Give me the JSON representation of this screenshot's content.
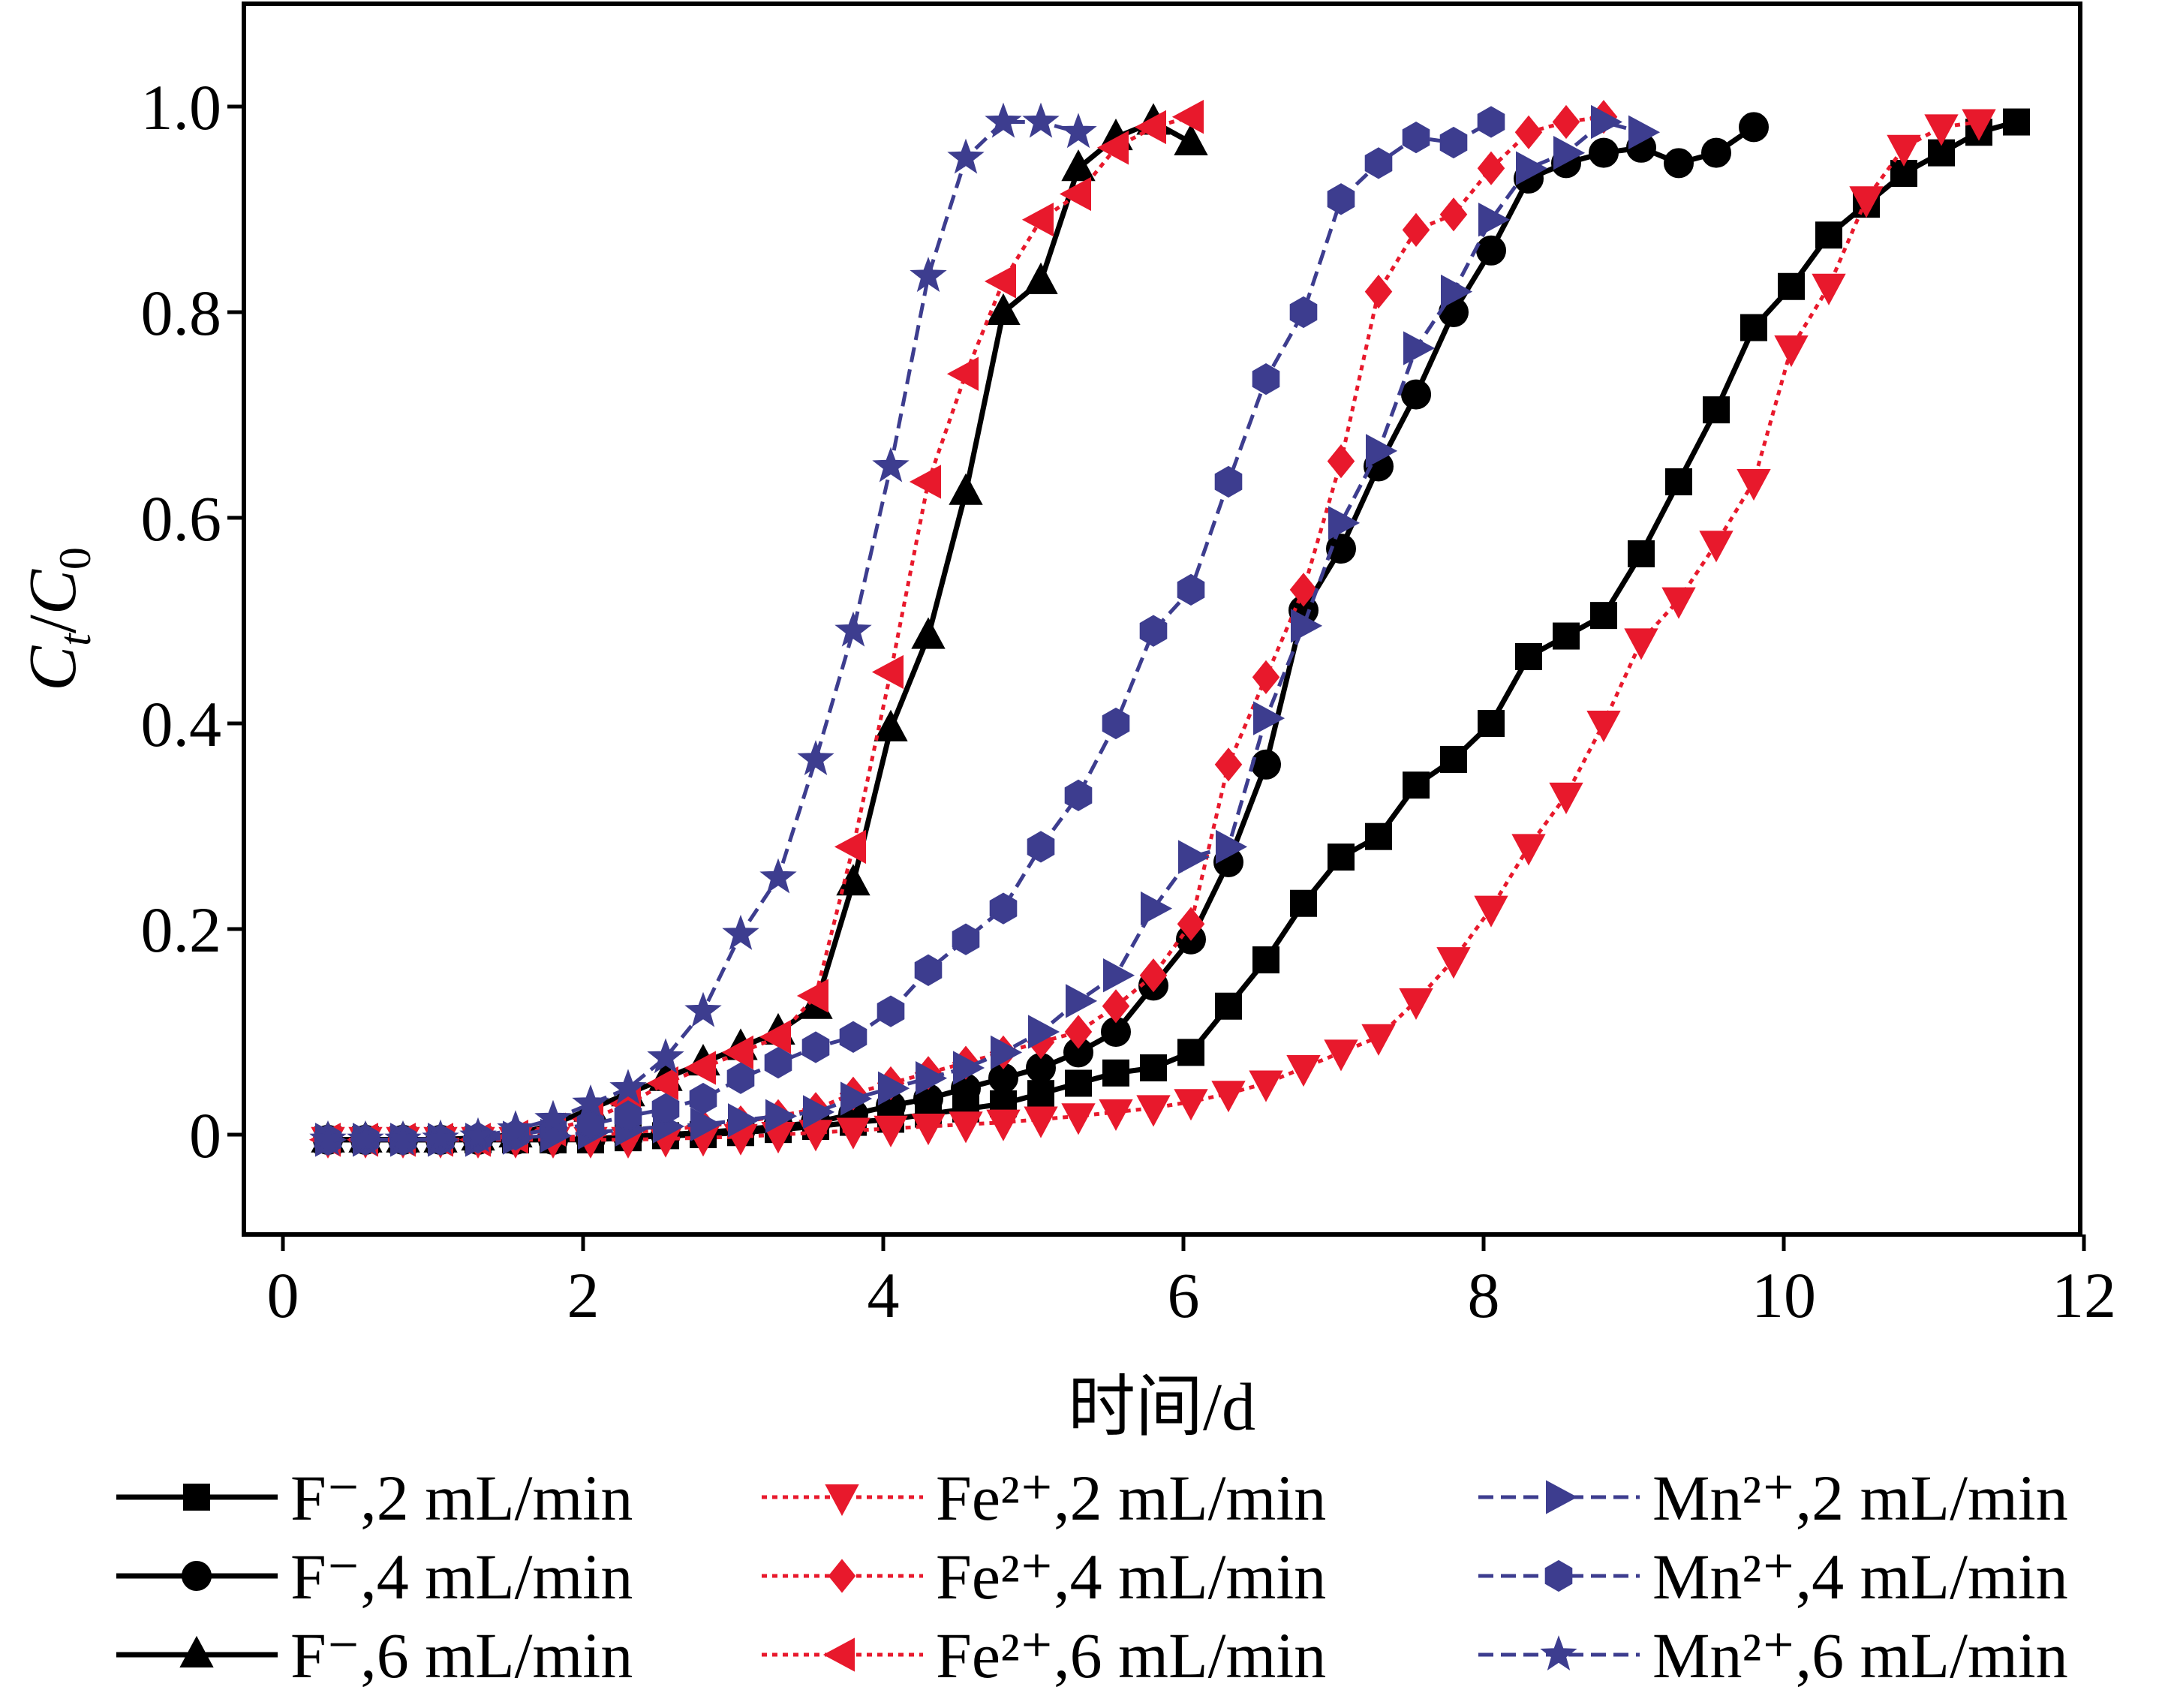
{
  "chart_data": {
    "type": "line",
    "title": "",
    "xlabel": "时间/d",
    "ylabel": "Ct/C0",
    "ylabel_parts": {
      "C1": "C",
      "sub1": "t",
      "slash": "/",
      "C2": "C",
      "sub2": "0"
    },
    "xlim": [
      -0.3,
      12
    ],
    "ylim": [
      -0.1,
      1.1
    ],
    "x_ticks": [
      0,
      2,
      4,
      6,
      8,
      10,
      12
    ],
    "x_tick_labels": [
      "0",
      "2",
      "4",
      "6",
      "8",
      "10",
      "12"
    ],
    "y_ticks": [
      0,
      0.2,
      0.4,
      0.6,
      0.8,
      1.0
    ],
    "y_tick_labels": [
      "0",
      "0.2",
      "0.4",
      "0.6",
      "0.8",
      "1.0"
    ],
    "grid": false,
    "legend_position": "bottom, below plot, 3 columns",
    "series": [
      {
        "name": "F⁻,2 mL/min",
        "color": "#000000",
        "dash": "solid",
        "marker": "square",
        "x": [
          0.3,
          0.55,
          0.8,
          1.05,
          1.3,
          1.55,
          1.8,
          2.05,
          2.3,
          2.55,
          2.8,
          3.05,
          3.3,
          3.55,
          3.8,
          4.05,
          4.3,
          4.55,
          4.8,
          5.05,
          5.3,
          5.55,
          5.8,
          6.05,
          6.3,
          6.55,
          6.8,
          7.05,
          7.3,
          7.55,
          7.8,
          8.05,
          8.3,
          8.55,
          8.8,
          9.05,
          9.3,
          9.55,
          9.8,
          10.05,
          10.3,
          10.55,
          10.8,
          11.05,
          11.3,
          11.55
        ],
        "y": [
          -0.005,
          -0.005,
          -0.005,
          -0.005,
          -0.005,
          -0.005,
          -0.005,
          -0.005,
          -0.003,
          -0.001,
          0,
          0.002,
          0.005,
          0.008,
          0.012,
          0.015,
          0.02,
          0.025,
          0.03,
          0.04,
          0.05,
          0.06,
          0.065,
          0.08,
          0.125,
          0.17,
          0.225,
          0.27,
          0.29,
          0.34,
          0.365,
          0.4,
          0.465,
          0.485,
          0.505,
          0.565,
          0.635,
          0.705,
          0.785,
          0.825,
          0.875,
          0.905,
          0.935,
          0.955,
          0.975,
          0.985
        ]
      },
      {
        "name": "F⁻,4 mL/min",
        "color": "#000000",
        "dash": "solid",
        "marker": "circle",
        "x": [
          0.3,
          0.55,
          0.8,
          1.05,
          1.3,
          1.55,
          1.8,
          2.05,
          2.3,
          2.55,
          2.8,
          3.05,
          3.3,
          3.55,
          3.8,
          4.05,
          4.3,
          4.55,
          4.8,
          5.05,
          5.3,
          5.55,
          5.8,
          6.05,
          6.3,
          6.55,
          6.8,
          7.05,
          7.3,
          7.55,
          7.8,
          8.05,
          8.3,
          8.55,
          8.8,
          9.05,
          9.3,
          9.55,
          9.8
        ],
        "y": [
          -0.005,
          -0.005,
          -0.005,
          -0.005,
          -0.005,
          -0.005,
          -0.005,
          -0.004,
          -0.002,
          0,
          0.002,
          0.005,
          0.008,
          0.012,
          0.02,
          0.028,
          0.035,
          0.045,
          0.055,
          0.065,
          0.08,
          0.1,
          0.145,
          0.19,
          0.265,
          0.36,
          0.51,
          0.57,
          0.65,
          0.72,
          0.8,
          0.86,
          0.93,
          0.945,
          0.955,
          0.96,
          0.945,
          0.955,
          0.98
        ]
      },
      {
        "name": "F⁻,6 mL/min",
        "color": "#000000",
        "dash": "solid",
        "marker": "triangle-up",
        "x": [
          0.3,
          0.55,
          0.8,
          1.05,
          1.3,
          1.55,
          1.8,
          2.05,
          2.3,
          2.55,
          2.8,
          3.05,
          3.3,
          3.55,
          3.8,
          4.05,
          4.3,
          4.55,
          4.8,
          5.05,
          5.3,
          5.55,
          5.8,
          6.05
        ],
        "y": [
          -0.005,
          -0.005,
          -0.005,
          -0.005,
          -0.003,
          0,
          0.01,
          0.025,
          0.04,
          0.055,
          0.07,
          0.085,
          0.1,
          0.125,
          0.245,
          0.395,
          0.485,
          0.625,
          0.8,
          0.83,
          0.94,
          0.97,
          0.985,
          0.965
        ]
      },
      {
        "name": "Fe²⁺,2 mL/min",
        "color": "#e8192c",
        "dash": "dotted",
        "marker": "triangle-down",
        "x": [
          0.3,
          0.55,
          0.8,
          1.05,
          1.3,
          1.55,
          1.8,
          2.05,
          2.3,
          2.55,
          2.8,
          3.05,
          3.3,
          3.55,
          3.8,
          4.05,
          4.3,
          4.55,
          4.8,
          5.05,
          5.3,
          5.55,
          5.8,
          6.05,
          6.3,
          6.55,
          6.8,
          7.05,
          7.3,
          7.55,
          7.8,
          8.05,
          8.3,
          8.55,
          8.8,
          9.05,
          9.3,
          9.55,
          9.8,
          10.05,
          10.3,
          10.55,
          10.8,
          11.05,
          11.3
        ],
        "y": [
          -0.005,
          -0.005,
          -0.005,
          -0.005,
          -0.005,
          -0.005,
          -0.005,
          -0.005,
          -0.005,
          -0.004,
          -0.003,
          -0.002,
          0,
          0.002,
          0.004,
          0.006,
          0.008,
          0.01,
          0.012,
          0.015,
          0.018,
          0.022,
          0.026,
          0.032,
          0.04,
          0.05,
          0.065,
          0.08,
          0.095,
          0.13,
          0.17,
          0.22,
          0.28,
          0.33,
          0.4,
          0.48,
          0.52,
          0.575,
          0.635,
          0.765,
          0.825,
          0.91,
          0.96,
          0.98,
          0.985
        ]
      },
      {
        "name": "Fe²⁺,4 mL/min",
        "color": "#e8192c",
        "dash": "dotted",
        "marker": "diamond",
        "x": [
          0.3,
          0.55,
          0.8,
          1.05,
          1.3,
          1.55,
          1.8,
          2.05,
          2.3,
          2.55,
          2.8,
          3.05,
          3.3,
          3.55,
          3.8,
          4.05,
          4.3,
          4.55,
          4.8,
          5.05,
          5.3,
          5.55,
          5.8,
          6.05,
          6.3,
          6.55,
          6.8,
          7.05,
          7.3,
          7.55,
          7.8,
          8.05,
          8.3,
          8.55,
          8.8
        ],
        "y": [
          -0.005,
          -0.005,
          -0.005,
          -0.005,
          -0.005,
          -0.004,
          -0.003,
          -0.001,
          0.002,
          0.005,
          0.008,
          0.012,
          0.018,
          0.025,
          0.04,
          0.05,
          0.06,
          0.07,
          0.08,
          0.09,
          0.1,
          0.125,
          0.155,
          0.205,
          0.36,
          0.445,
          0.53,
          0.655,
          0.82,
          0.88,
          0.895,
          0.94,
          0.975,
          0.985,
          0.99
        ]
      },
      {
        "name": "Fe²⁺,6 mL/min",
        "color": "#e8192c",
        "dash": "dotted",
        "marker": "triangle-left",
        "x": [
          0.3,
          0.55,
          0.8,
          1.05,
          1.3,
          1.55,
          1.8,
          2.05,
          2.3,
          2.55,
          2.8,
          3.05,
          3.3,
          3.55,
          3.8,
          4.05,
          4.3,
          4.55,
          4.8,
          5.05,
          5.3,
          5.55,
          5.8,
          6.05
        ],
        "y": [
          -0.005,
          -0.005,
          -0.005,
          -0.005,
          -0.005,
          -0.002,
          0.005,
          0.015,
          0.03,
          0.05,
          0.065,
          0.08,
          0.095,
          0.135,
          0.28,
          0.45,
          0.635,
          0.74,
          0.83,
          0.89,
          0.915,
          0.96,
          0.98,
          0.99
        ]
      },
      {
        "name": "Mn²⁺,2 mL/min",
        "color": "#3d3d8f",
        "dash": "dashed",
        "marker": "triangle-right",
        "x": [
          0.3,
          0.55,
          0.8,
          1.05,
          1.3,
          1.55,
          1.8,
          2.05,
          2.3,
          2.55,
          2.8,
          3.05,
          3.3,
          3.55,
          3.8,
          4.05,
          4.3,
          4.55,
          4.8,
          5.05,
          5.3,
          5.55,
          5.8,
          6.05,
          6.3,
          6.55,
          6.8,
          7.05,
          7.3,
          7.55,
          7.8,
          8.05,
          8.3,
          8.55,
          8.8,
          9.05
        ],
        "y": [
          -0.005,
          -0.005,
          -0.005,
          -0.005,
          -0.005,
          -0.003,
          -0.001,
          0.002,
          0.005,
          0.008,
          0.01,
          0.014,
          0.018,
          0.022,
          0.035,
          0.045,
          0.055,
          0.065,
          0.08,
          0.1,
          0.13,
          0.155,
          0.22,
          0.27,
          0.28,
          0.405,
          0.495,
          0.595,
          0.665,
          0.765,
          0.82,
          0.89,
          0.94,
          0.955,
          0.985,
          0.975
        ]
      },
      {
        "name": "Mn²⁺,4 mL/min",
        "color": "#3d3d8f",
        "dash": "dashed",
        "marker": "hexagon",
        "x": [
          0.3,
          0.55,
          0.8,
          1.05,
          1.3,
          1.55,
          1.8,
          2.05,
          2.3,
          2.55,
          2.8,
          3.05,
          3.3,
          3.55,
          3.8,
          4.05,
          4.3,
          4.55,
          4.8,
          5.05,
          5.3,
          5.55,
          5.8,
          6.05,
          6.3,
          6.55,
          6.8,
          7.05,
          7.3,
          7.55,
          7.8,
          8.05
        ],
        "y": [
          -0.005,
          -0.005,
          -0.005,
          -0.005,
          -0.003,
          0,
          0.005,
          0.01,
          0.018,
          0.025,
          0.035,
          0.055,
          0.07,
          0.085,
          0.095,
          0.12,
          0.16,
          0.19,
          0.22,
          0.28,
          0.33,
          0.4,
          0.49,
          0.53,
          0.635,
          0.735,
          0.8,
          0.91,
          0.945,
          0.97,
          0.965,
          0.985
        ]
      },
      {
        "name": "Mn²⁺,6 mL/min",
        "color": "#3d3d8f",
        "dash": "dashed",
        "marker": "star",
        "x": [
          0.3,
          0.55,
          0.8,
          1.05,
          1.3,
          1.55,
          1.8,
          2.05,
          2.3,
          2.55,
          2.8,
          3.05,
          3.3,
          3.55,
          3.8,
          4.05,
          4.3,
          4.55,
          4.8,
          5.05,
          5.3
        ],
        "y": [
          -0.005,
          -0.005,
          -0.005,
          -0.004,
          -0.002,
          0.005,
          0.015,
          0.03,
          0.045,
          0.075,
          0.12,
          0.195,
          0.25,
          0.365,
          0.49,
          0.65,
          0.835,
          0.95,
          0.985,
          0.985,
          0.975
        ]
      }
    ]
  }
}
